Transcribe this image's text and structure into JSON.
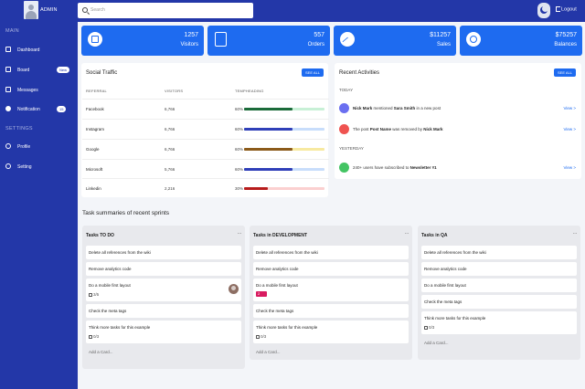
{
  "header": {
    "brand": "ADMIN",
    "search_placeholder": "Search",
    "logout_label": "Logout"
  },
  "sidebar": {
    "section_main": "MAIN",
    "section_settings": "SETTINGS",
    "items": [
      {
        "label": "Dashboard",
        "icon": "dashboard-icon"
      },
      {
        "label": "Board",
        "icon": "board-icon",
        "badge": "New"
      },
      {
        "label": "Messages",
        "icon": "messages-icon"
      },
      {
        "label": "Notification",
        "icon": "notification-icon",
        "badge": "15"
      },
      {
        "label": "Profile",
        "icon": "profile-icon"
      },
      {
        "label": "Setting",
        "icon": "setting-icon"
      }
    ]
  },
  "stats": [
    {
      "value": "1257",
      "label": "Visitors",
      "icon": "bank-icon"
    },
    {
      "value": "557",
      "label": "Orders",
      "icon": "shopping-bag-icon"
    },
    {
      "value": "$11257",
      "label": "Sales",
      "icon": "trend-icon"
    },
    {
      "value": "$75257",
      "label": "Balances",
      "icon": "dollar-icon"
    }
  ],
  "social": {
    "title": "Social Traffic",
    "see_all": "SEE ALL",
    "headers": [
      "REFERRAL",
      "VISITORS",
      "TEMPHEADING"
    ],
    "rows": [
      {
        "name": "Facebook",
        "visitors": "6,766",
        "percent": "60%",
        "fill": 0.6,
        "color": "#1b6b3a",
        "track": "#c8f0d6"
      },
      {
        "name": "Instagram",
        "visitors": "6,766",
        "percent": "60%",
        "fill": 0.6,
        "color": "#2f3fb8",
        "track": "#c8ddfb"
      },
      {
        "name": "Google",
        "visitors": "6,766",
        "percent": "60%",
        "fill": 0.6,
        "color": "#8b5a1a",
        "track": "#f7e9a0"
      },
      {
        "name": "Microsoft",
        "visitors": "5,766",
        "percent": "60%",
        "fill": 0.6,
        "color": "#2f3fb8",
        "track": "#c8ddfb"
      },
      {
        "name": "Linkedin",
        "visitors": "2,216",
        "percent": "30%",
        "fill": 0.3,
        "color": "#b71c1c",
        "track": "#fbd0d0"
      }
    ]
  },
  "activities": {
    "title": "Recent Activities",
    "see_all": "SEE ALL",
    "today_label": "TODAY",
    "yesterday_label": "YESTERDAY",
    "view_label": "View >",
    "items": [
      {
        "t1": "Nick Mark",
        "t2": " mentioned ",
        "t3": "Sara Smith",
        "t4": " in a new post",
        "color": "#6a6ff0"
      },
      {
        "t1": "",
        "t2": "The post ",
        "t3": "Post Name",
        "t4": " was removed by ",
        "t5": "Nick Mark",
        "color": "#ef5350"
      },
      {
        "t1": "",
        "t2": "240+ users have subscribed to ",
        "t3": "Newsletter #1",
        "t4": "",
        "color": "#43c463"
      }
    ]
  },
  "kanban": {
    "title": "Task summaries of recent sprints",
    "add_label": "Add a Card...",
    "columns": [
      {
        "name": "Tasks TO DO",
        "cards": [
          {
            "title": "Delete all references from the wiki"
          },
          {
            "title": "Remove analytics code"
          },
          {
            "title": "Do a mobile first layout",
            "meta": "3/5"
          },
          {
            "title": "Check the meta tags"
          },
          {
            "title": "Think more tasks for this example",
            "meta": "0/3"
          }
        ]
      },
      {
        "name": "Tasks in DEVELOPMENT",
        "cards": [
          {
            "title": "Delete all references from the wiki"
          },
          {
            "title": "Remove analytics code"
          },
          {
            "title": "Do a mobile first layout",
            "pill": "2"
          },
          {
            "title": "Check the meta tags"
          },
          {
            "title": "Think more tasks for this example",
            "meta": "0/3"
          }
        ]
      },
      {
        "name": "Tasks in QA",
        "cards": [
          {
            "title": "Delete all references from the wiki"
          },
          {
            "title": "Remove analytics code"
          },
          {
            "title": "Do a mobile first layout"
          },
          {
            "title": "Check the meta tags"
          },
          {
            "title": "Think more tasks for this example",
            "meta": "0/3"
          }
        ]
      }
    ]
  }
}
